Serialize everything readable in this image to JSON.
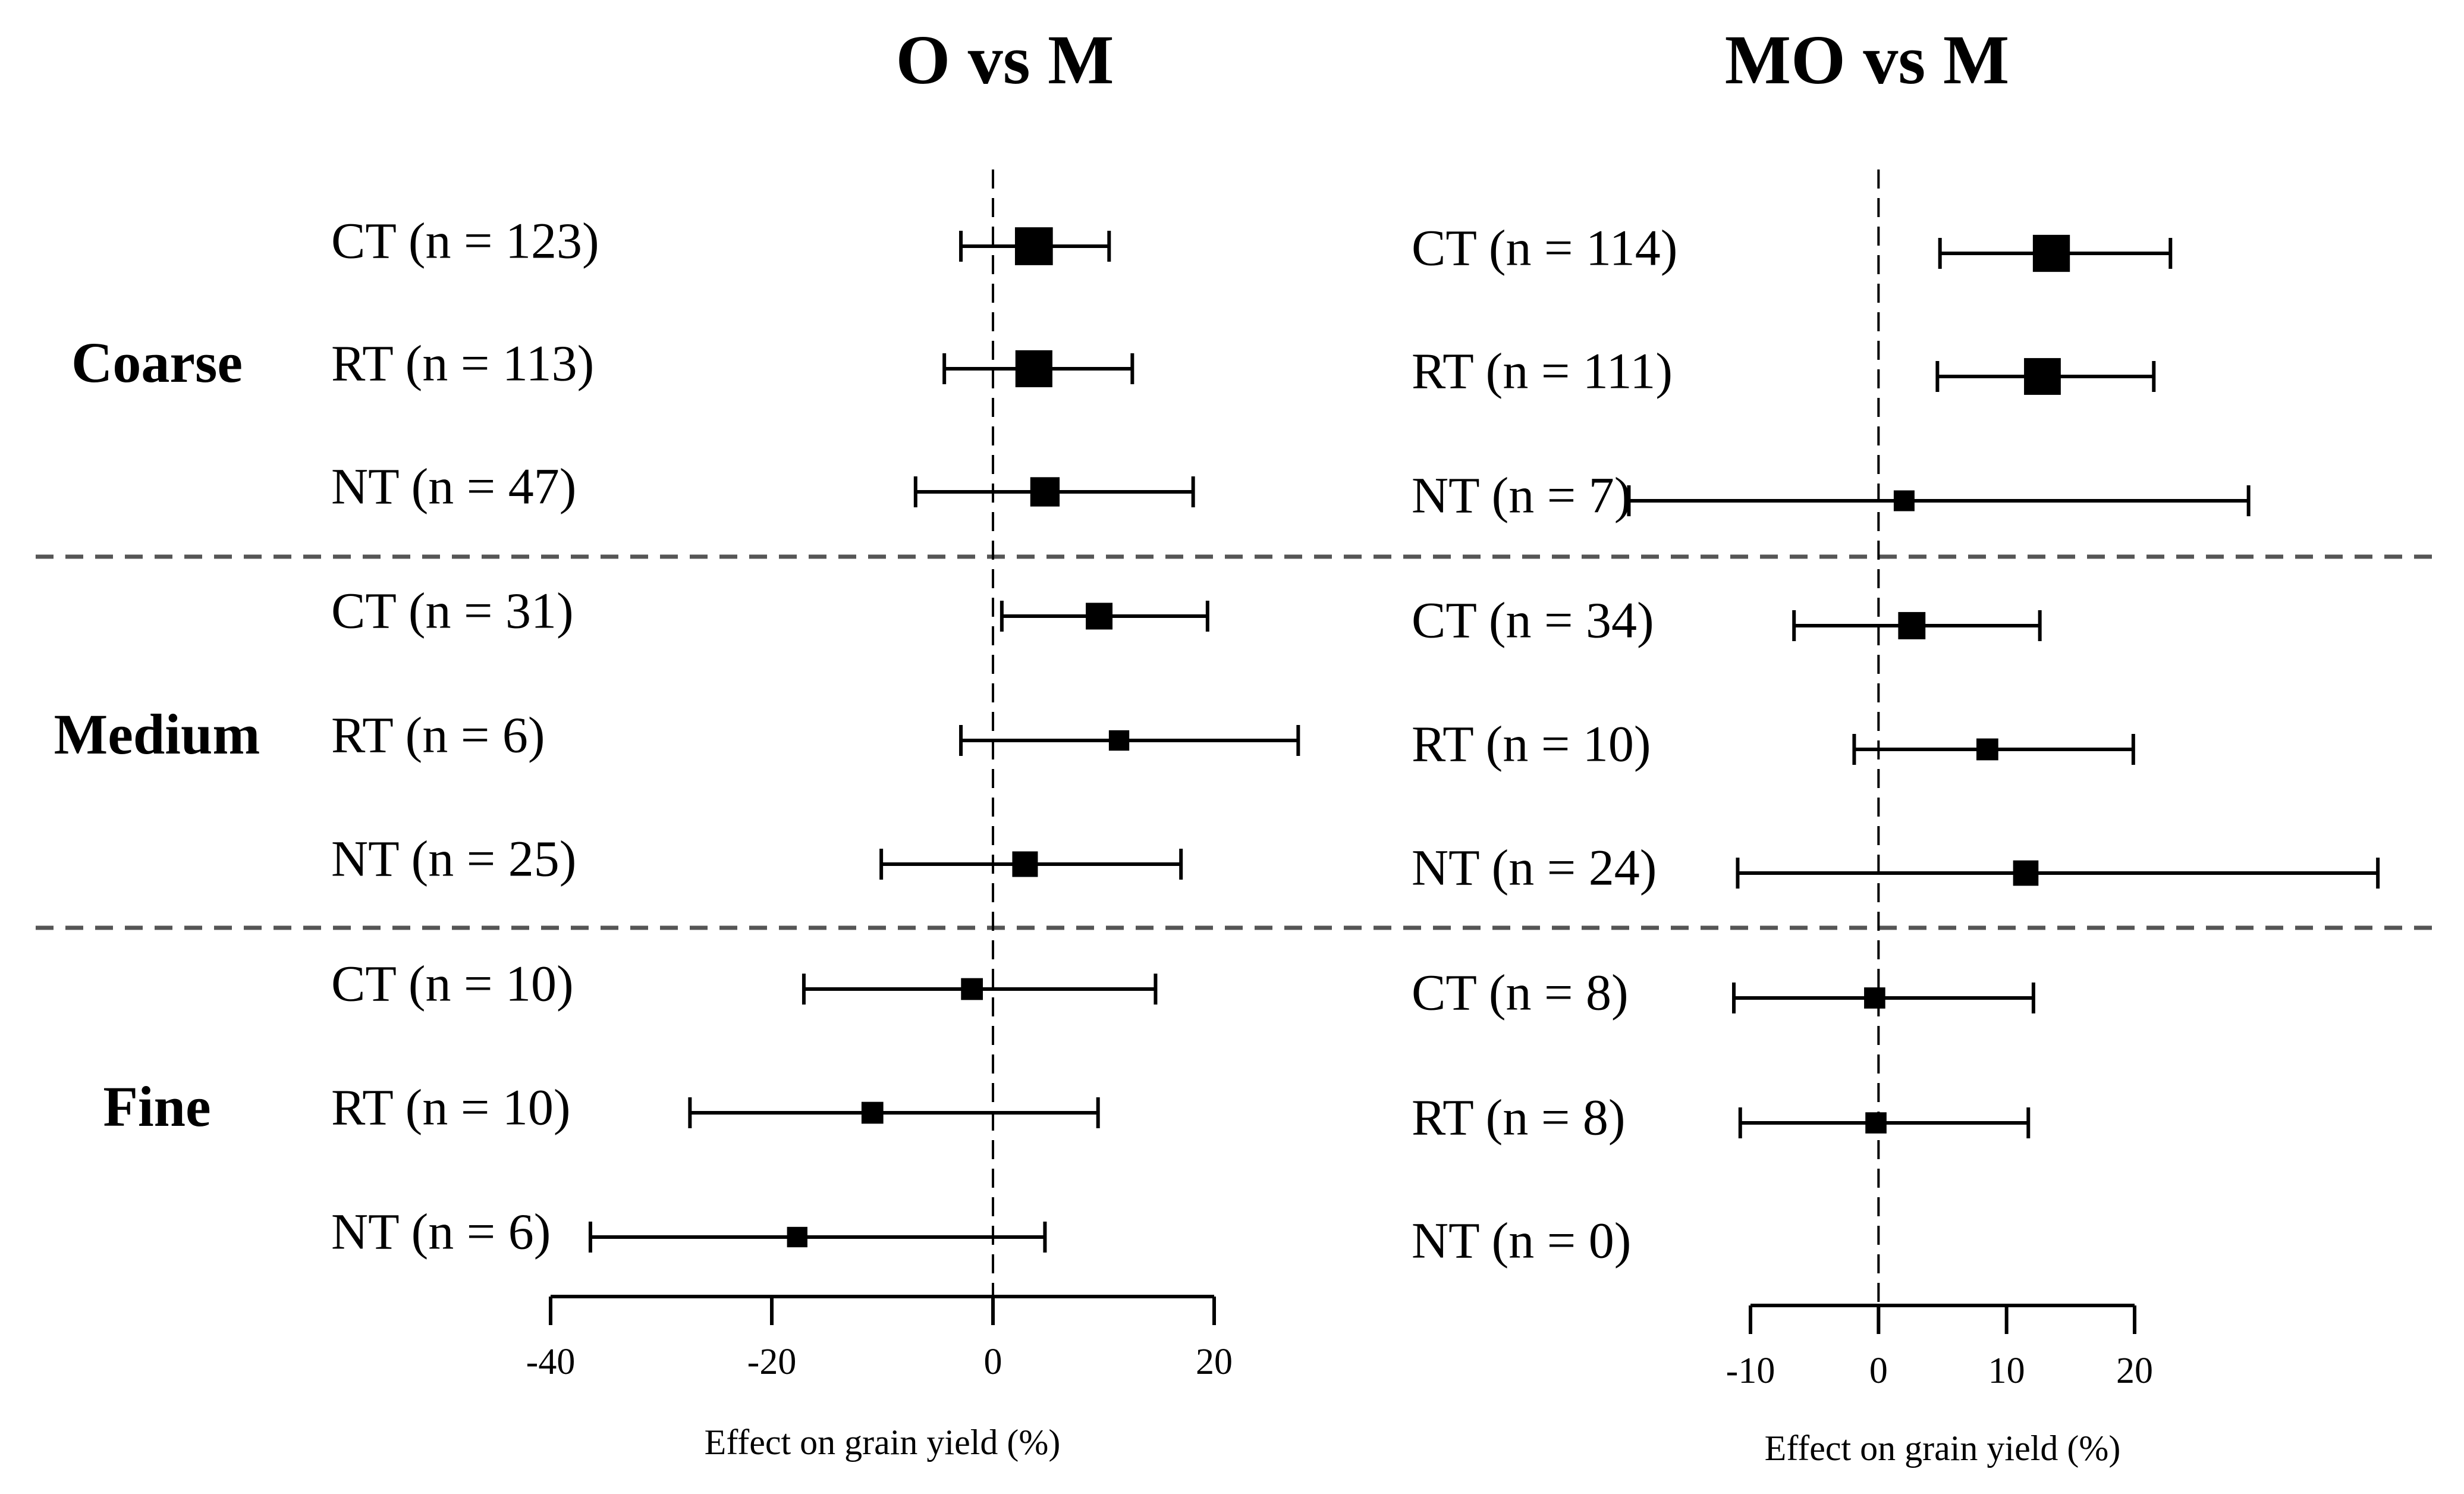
{
  "chart_data": [
    {
      "type": "forest",
      "title": "O vs M",
      "xlabel": "Effect on grain yield (%)",
      "xlim": [
        -40,
        20
      ],
      "xticks": [
        -40,
        -20,
        0,
        20
      ],
      "xtick_labels": [
        "-40",
        "-20",
        "0",
        "20"
      ],
      "reference_line": 0,
      "groups": [
        {
          "name": "Coarse",
          "rows": [
            {
              "label": "CT (n = 123)",
              "n": 123,
              "estimate": 3.7,
              "ci_low": -2.9,
              "ci_high": 10.5
            },
            {
              "label": "RT (n = 113)",
              "n": 113,
              "estimate": 3.7,
              "ci_low": -4.4,
              "ci_high": 12.6
            },
            {
              "label": "NT (n = 47)",
              "n": 47,
              "estimate": 4.7,
              "ci_low": -7.0,
              "ci_high": 18.1
            }
          ]
        },
        {
          "name": "Medium",
          "rows": [
            {
              "label": "CT (n = 31)",
              "n": 31,
              "estimate": 9.6,
              "ci_low": 0.8,
              "ci_high": 19.4
            },
            {
              "label": "RT (n = 6)",
              "n": 6,
              "estimate": 11.4,
              "ci_low": -2.9,
              "ci_high": 27.6
            },
            {
              "label": "NT (n = 25)",
              "n": 25,
              "estimate": 2.9,
              "ci_low": -10.1,
              "ci_high": 17.0
            }
          ]
        },
        {
          "name": "Fine",
          "rows": [
            {
              "label": "CT (n = 10)",
              "n": 10,
              "estimate": -1.9,
              "ci_low": -17.1,
              "ci_high": 14.7
            },
            {
              "label": "RT (n = 10)",
              "n": 10,
              "estimate": -10.9,
              "ci_low": -27.4,
              "ci_high": 9.5
            },
            {
              "label": "NT (n = 6)",
              "n": 6,
              "estimate": -17.7,
              "ci_low": -36.4,
              "ci_high": 4.7
            }
          ]
        }
      ]
    },
    {
      "type": "forest",
      "title": "MO vs M",
      "xlabel": "Effect on grain yield (%)",
      "xlim": [
        -10,
        20
      ],
      "xticks": [
        -10,
        0,
        10,
        20
      ],
      "xtick_labels": [
        "-10",
        "0",
        "10",
        "20"
      ],
      "reference_line": 0,
      "groups": [
        {
          "name": "Coarse",
          "rows": [
            {
              "label": "CT (n = 114)",
              "n": 114,
              "estimate": 13.5,
              "ci_low": 4.8,
              "ci_high": 22.8
            },
            {
              "label": "RT (n = 111)",
              "n": 111,
              "estimate": 12.8,
              "ci_low": 4.6,
              "ci_high": 21.5
            },
            {
              "label": "NT (n = 7)",
              "n": 7,
              "estimate": 2.0,
              "ci_low": -19.5,
              "ci_high": 28.9
            }
          ]
        },
        {
          "name": "Medium",
          "rows": [
            {
              "label": "CT (n = 34)",
              "n": 34,
              "estimate": 2.6,
              "ci_low": -6.6,
              "ci_high": 12.6
            },
            {
              "label": "RT (n = 10)",
              "n": 10,
              "estimate": 8.5,
              "ci_low": -1.9,
              "ci_high": 19.9
            },
            {
              "label": "NT (n = 24)",
              "n": 24,
              "estimate": 11.5,
              "ci_low": -11.0,
              "ci_high": 39.0
            }
          ]
        },
        {
          "name": "Fine",
          "rows": [
            {
              "label": "CT (n = 8)",
              "n": 8,
              "estimate": -0.3,
              "ci_low": -11.3,
              "ci_high": 12.1
            },
            {
              "label": "RT (n = 8)",
              "n": 8,
              "estimate": -0.2,
              "ci_low": -10.8,
              "ci_high": 11.7
            },
            {
              "label": "NT (n = 0)",
              "n": 0,
              "estimate": null,
              "ci_low": null,
              "ci_high": null
            }
          ]
        }
      ]
    }
  ]
}
